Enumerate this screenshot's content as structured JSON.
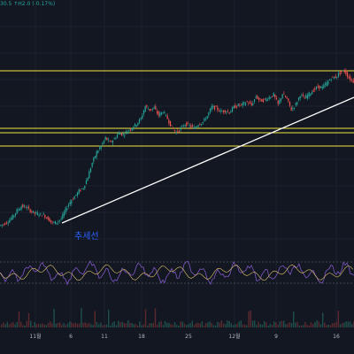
{
  "ohlc_readout": "30.5  ↑H2.0 (-0.17%)",
  "trendline_label": "추세선",
  "colors": {
    "background": "#131722",
    "grid": "#1e222d",
    "up": "#26a69a",
    "down": "#ef5350",
    "level": "#f0e442",
    "trendline": "#ffffff",
    "label": "#2962ff",
    "oscillator": "#7e57c2"
  },
  "x_axis_labels": [
    "11월",
    "6",
    "11",
    "18",
    "25",
    "12월",
    "9",
    "16"
  ],
  "chart_data": {
    "type": "line",
    "x": [
      0,
      5,
      10,
      15,
      20,
      25,
      30,
      35,
      40,
      45,
      50,
      55,
      60,
      65,
      70,
      75,
      80,
      85,
      90,
      95,
      100,
      105,
      110,
      115,
      120,
      125,
      130,
      135,
      140,
      145,
      150,
      155,
      160,
      165,
      170,
      175,
      180,
      185,
      190,
      195,
      200,
      205,
      210,
      215,
      220,
      225,
      230,
      235,
      240,
      245,
      250,
      255,
      260,
      265,
      270,
      275,
      280,
      285,
      290,
      295,
      300,
      305,
      310,
      315,
      320,
      325,
      330,
      335,
      340,
      345,
      350,
      355,
      360,
      365,
      370,
      375,
      380,
      385,
      390,
      395,
      400
    ],
    "values": [
      35,
      37,
      40,
      45,
      52,
      57,
      56,
      52,
      49,
      48,
      47,
      43,
      38,
      39,
      43,
      53,
      62,
      68,
      74,
      78,
      90,
      106,
      118,
      125,
      134,
      129,
      133,
      140,
      138,
      142,
      146,
      150,
      156,
      170,
      166,
      168,
      160,
      164,
      156,
      146,
      140,
      145,
      150,
      148,
      145,
      150,
      152,
      159,
      169,
      168,
      164,
      165,
      163,
      169,
      171,
      172,
      175,
      171,
      181,
      176,
      177,
      180,
      183,
      172,
      184,
      178,
      166,
      172,
      183,
      179,
      184,
      188,
      192,
      191,
      196,
      202,
      203,
      208,
      210,
      202,
      198
    ],
    "levels": [
      210,
      145,
      140,
      125
    ],
    "trendline": {
      "from": [
        70,
        38
      ],
      "to": [
        400,
        180
      ]
    },
    "xlabel": "",
    "ylabel": ""
  }
}
